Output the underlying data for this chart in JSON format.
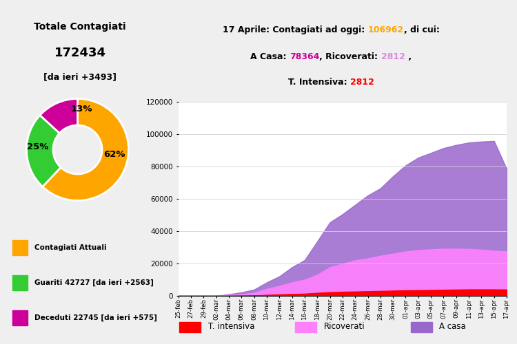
{
  "title_total": "Totale Contagiati",
  "total_value": "172434",
  "total_delta": "[da ieri +3493]",
  "donut_values": [
    106962,
    42727,
    22745
  ],
  "donut_colors": [
    "#FFA500",
    "#33CC33",
    "#CC0099"
  ],
  "donut_labels": [
    "62%",
    "25%",
    "13%"
  ],
  "legend_labels": [
    "Contagiati Attuali",
    "Guariti 42727 [da ieri +2563]",
    "Deceduti 22745 [da ieri +575]"
  ],
  "dates": [
    "25-feb",
    "27-feb",
    "29-feb",
    "02-mar",
    "04-mar",
    "06-mar",
    "08-mar",
    "10-mar",
    "12-mar",
    "14-mar",
    "16-mar",
    "18-mar",
    "20-mar",
    "22-mar",
    "24-mar",
    "26-mar",
    "28-mar",
    "30-mar",
    "01-apr",
    "03-apr",
    "05-apr",
    "07-apr",
    "09-apr",
    "11-apr",
    "13-apr",
    "15-apr",
    "17-apr"
  ],
  "t_intensiva": [
    0,
    0,
    0,
    0,
    67,
    140,
    229,
    567,
    877,
    1153,
    1328,
    1851,
    2257,
    2498,
    2655,
    2857,
    3009,
    3204,
    3396,
    3489,
    3605,
    3732,
    3856,
    3981,
    3994,
    3977,
    3906
  ],
  "ricoverati": [
    0,
    0,
    0,
    0,
    555,
    1060,
    1843,
    4316,
    6168,
    8372,
    10023,
    13030,
    17708,
    19846,
    21937,
    23112,
    24753,
    26029,
    27386,
    28192,
    28710,
    29079,
    29079,
    28949,
    28540,
    27847,
    27386
  ],
  "a_casa": [
    0,
    0,
    0,
    0,
    1000,
    2180,
    3916,
    8326,
    12090,
    17708,
    22116,
    33648,
    45420,
    50418,
    56197,
    61999,
    66414,
    73880,
    80572,
    85388,
    88274,
    91246,
    93187,
    94672,
    95262,
    95644,
    78364
  ],
  "color_intensiva": "#FF0000",
  "color_ricoverati": "#FF80FF",
  "color_acasa": "#9966CC",
  "bg_color": "#EFEFEF",
  "annotation_bg": "#B8D8E8",
  "ylim": [
    0,
    120000
  ],
  "yticks": [
    0,
    20000,
    40000,
    60000,
    80000,
    100000,
    120000
  ]
}
